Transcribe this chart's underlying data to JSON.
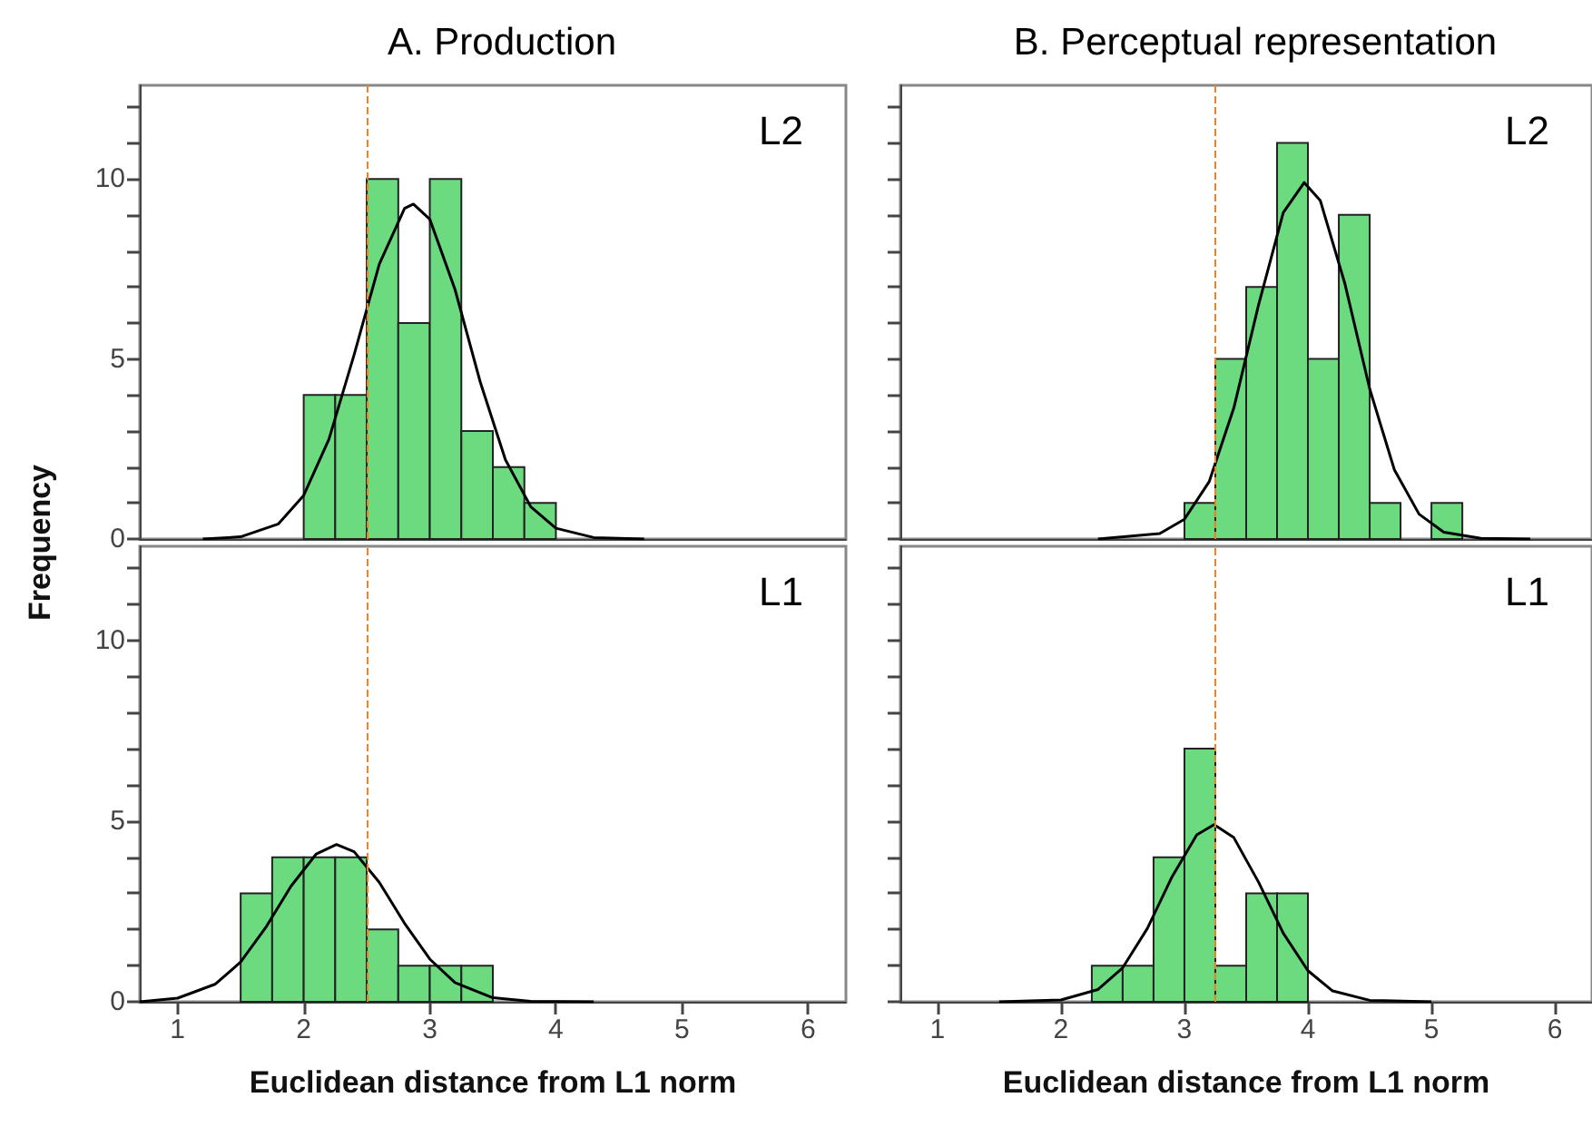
{
  "chart_data": [
    {
      "type": "histogram",
      "title": "A. Production",
      "ylabel": "Frequency",
      "annotations": [
        "L2"
      ],
      "xlim": [
        0.7,
        6.3
      ],
      "ylim": [
        0,
        12.6
      ],
      "xticks": [
        1,
        2,
        3,
        4,
        5,
        6
      ],
      "yticks": [
        0,
        {
          "value": 1,
          "label": null
        },
        {
          "value": 2,
          "label": null
        },
        {
          "value": 3,
          "label": null
        },
        {
          "value": 4,
          "label": null
        },
        5,
        {
          "value": 6,
          "label": null
        },
        {
          "value": 7,
          "label": null
        },
        {
          "value": 8,
          "label": null
        },
        {
          "value": 9,
          "label": null
        },
        10,
        {
          "value": 11,
          "label": null
        },
        {
          "value": 12,
          "label": null
        }
      ],
      "tick_labels": "y",
      "grid": false,
      "series": [
        {
          "color": "#6cdb80",
          "bins": [
            2.0,
            2.25,
            2.5,
            2.75,
            3.0,
            3.25,
            3.5,
            3.75,
            4.0
          ],
          "values": [
            4,
            4,
            10,
            6,
            10,
            3,
            2,
            1
          ]
        },
        {
          "type": "line",
          "color": "#000000",
          "marker": "none",
          "x": [
            1.2,
            1.5,
            1.8,
            2.0,
            2.2,
            2.4,
            2.6,
            2.8,
            2.87,
            3.0,
            3.2,
            3.4,
            3.6,
            3.8,
            4.0,
            4.3,
            4.7
          ],
          "values": [
            0,
            0.06,
            0.42,
            1.21,
            2.77,
            5.12,
            7.64,
            9.18,
            9.3,
            8.88,
            6.93,
            4.36,
            2.2,
            0.9,
            0.3,
            0.04,
            0
          ]
        }
      ],
      "ref_lines": [
        {
          "axis": "x",
          "value": 2.5,
          "color": "#f08020",
          "line_style": "dashed"
        }
      ]
    },
    {
      "type": "histogram",
      "title": "B. Perceptual representation",
      "annotations": [
        "L2"
      ],
      "xlim": [
        0.7,
        6.3
      ],
      "ylim": [
        0,
        12.6
      ],
      "xticks": [
        1,
        2,
        3,
        4,
        5,
        6
      ],
      "yticks": [
        {
          "value": 0,
          "label": null
        },
        {
          "value": 1,
          "label": null
        },
        {
          "value": 2,
          "label": null
        },
        {
          "value": 3,
          "label": null
        },
        {
          "value": 4,
          "label": null
        },
        {
          "value": 5,
          "label": null
        },
        {
          "value": 6,
          "label": null
        },
        {
          "value": 7,
          "label": null
        },
        {
          "value": 8,
          "label": null
        },
        {
          "value": 9,
          "label": null
        },
        {
          "value": 10,
          "label": null
        },
        {
          "value": 11,
          "label": null
        },
        {
          "value": 12,
          "label": null
        }
      ],
      "tick_labels": false,
      "grid": false,
      "series": [
        {
          "color": "#6cdb80",
          "bins": [
            3.0,
            3.25,
            3.5,
            3.75,
            4.0,
            4.25,
            4.5,
            4.75,
            5.0,
            5.25
          ],
          "values": [
            1,
            5,
            7,
            11,
            5,
            9,
            1,
            0,
            1
          ]
        },
        {
          "type": "line",
          "color": "#000000",
          "marker": "none",
          "x": [
            2.3,
            2.8,
            3.0,
            3.2,
            3.4,
            3.6,
            3.8,
            3.97,
            4.1,
            4.3,
            4.5,
            4.7,
            4.9,
            5.1,
            5.4,
            5.8
          ],
          "values": [
            0,
            0.15,
            0.55,
            1.59,
            3.64,
            6.5,
            9.06,
            9.9,
            9.4,
            7.08,
            4.17,
            1.92,
            0.69,
            0.19,
            0.02,
            0
          ]
        }
      ],
      "ref_lines": [
        {
          "axis": "x",
          "value": 3.25,
          "color": "#f08020",
          "line_style": "dashed"
        }
      ]
    },
    {
      "type": "histogram",
      "xlabel": "Euclidean distance from L1 norm",
      "annotations": [
        "L1"
      ],
      "xlim": [
        0.7,
        6.3
      ],
      "ylim": [
        0,
        12.6
      ],
      "xticks": [
        1,
        2,
        3,
        4,
        5,
        6
      ],
      "yticks": [
        0,
        {
          "value": 1,
          "label": null
        },
        {
          "value": 2,
          "label": null
        },
        {
          "value": 3,
          "label": null
        },
        {
          "value": 4,
          "label": null
        },
        5,
        {
          "value": 6,
          "label": null
        },
        {
          "value": 7,
          "label": null
        },
        {
          "value": 8,
          "label": null
        },
        {
          "value": 9,
          "label": null
        },
        10,
        {
          "value": 11,
          "label": null
        },
        {
          "value": 12,
          "label": null
        }
      ],
      "grid": false,
      "series": [
        {
          "color": "#6cdb80",
          "bins": [
            1.5,
            1.75,
            2.0,
            2.25,
            2.5,
            2.75,
            3.0,
            3.25,
            3.5
          ],
          "values": [
            3,
            4,
            4,
            4,
            2,
            1,
            1,
            1
          ]
        },
        {
          "type": "line",
          "color": "#000000",
          "marker": "none",
          "x": [
            0.7,
            1.0,
            1.3,
            1.5,
            1.7,
            1.9,
            2.1,
            2.26,
            2.4,
            2.6,
            2.8,
            3.0,
            3.2,
            3.5,
            3.8,
            4.3
          ],
          "values": [
            0,
            0.1,
            0.49,
            1.1,
            2.06,
            3.2,
            4.09,
            4.35,
            4.15,
            3.3,
            2.17,
            1.18,
            0.53,
            0.11,
            0.01,
            0
          ]
        }
      ],
      "ref_lines": [
        {
          "axis": "x",
          "value": 2.5,
          "color": "#f08020",
          "line_style": "dashed"
        }
      ]
    },
    {
      "type": "histogram",
      "xlabel": "Euclidean distance from L1 norm",
      "annotations": [
        "L1"
      ],
      "xlim": [
        0.7,
        6.3
      ],
      "ylim": [
        0,
        12.6
      ],
      "xticks": [
        1,
        2,
        3,
        4,
        5,
        6
      ],
      "yticks": [
        {
          "value": 0,
          "label": null
        },
        {
          "value": 1,
          "label": null
        },
        {
          "value": 2,
          "label": null
        },
        {
          "value": 3,
          "label": null
        },
        {
          "value": 4,
          "label": null
        },
        {
          "value": 5,
          "label": null
        },
        {
          "value": 6,
          "label": null
        },
        {
          "value": 7,
          "label": null
        },
        {
          "value": 8,
          "label": null
        },
        {
          "value": 9,
          "label": null
        },
        {
          "value": 10,
          "label": null
        },
        {
          "value": 11,
          "label": null
        },
        {
          "value": 12,
          "label": null
        }
      ],
      "tick_labels": "x",
      "grid": false,
      "series": [
        {
          "color": "#6cdb80",
          "bins": [
            2.25,
            2.5,
            2.75,
            3.0,
            3.25,
            3.5,
            3.75,
            4.0
          ],
          "values": [
            1,
            1,
            4,
            7,
            1,
            3,
            3
          ]
        },
        {
          "type": "line",
          "color": "#000000",
          "marker": "none",
          "x": [
            1.5,
            2.0,
            2.3,
            2.5,
            2.7,
            2.9,
            3.1,
            3.24,
            3.4,
            3.6,
            3.8,
            4.0,
            4.2,
            4.5,
            5.0
          ],
          "values": [
            0,
            0.05,
            0.34,
            0.94,
            2.03,
            3.46,
            4.62,
            4.9,
            4.54,
            3.31,
            1.9,
            0.86,
            0.3,
            0.04,
            0
          ]
        }
      ],
      "ref_lines": [
        {
          "axis": "x",
          "value": 3.25,
          "color": "#f08020",
          "line_style": "dashed"
        }
      ]
    }
  ]
}
